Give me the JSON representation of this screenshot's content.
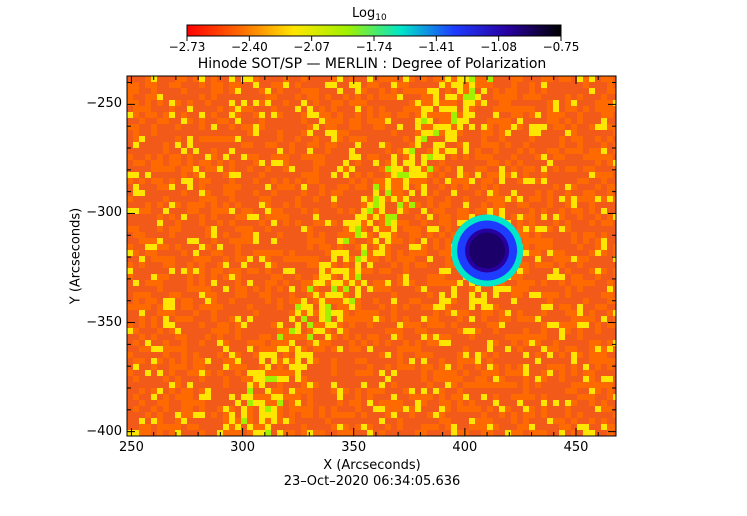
{
  "chart_data": {
    "type": "heatmap",
    "title": "Hinode SOT/SP — MERLIN : Degree of Polarization",
    "xlabel": "X (Arcseconds)",
    "ylabel": "Y (Arcseconds)",
    "timestamp": "23–Oct–2020 06:34:05.636",
    "xlim": [
      248,
      468
    ],
    "ylim": [
      -402,
      -237
    ],
    "xticks": [
      {
        "value": 250,
        "label": "250"
      },
      {
        "value": 300,
        "label": "300"
      },
      {
        "value": 350,
        "label": "350"
      },
      {
        "value": 400,
        "label": "400"
      },
      {
        "value": 450,
        "label": "450"
      }
    ],
    "yticks": [
      {
        "value": -250,
        "label": "−250"
      },
      {
        "value": -300,
        "label": "−300"
      },
      {
        "value": -350,
        "label": "−350"
      },
      {
        "value": -400,
        "label": "−400"
      }
    ],
    "colorbar": {
      "title": "Log",
      "title_subscript": "10",
      "colormap": "rainbow",
      "range": [
        -2.73,
        -0.75
      ],
      "tick_values": [
        -2.73,
        -2.4,
        -2.07,
        -1.74,
        -1.41,
        -1.08,
        -0.75
      ],
      "tick_labels": [
        "−2.73",
        "−2.40",
        "−2.07",
        "−1.74",
        "−1.41",
        "−1.08",
        "−0.75"
      ],
      "stops": [
        "#ff0000",
        "#ff6a00",
        "#ffe600",
        "#a0f000",
        "#00e6c8",
        "#1e3cff",
        "#2800a0",
        "#000000"
      ]
    },
    "features": [
      {
        "kind": "sunspot",
        "x": 410,
        "y": -317,
        "level": -0.8
      }
    ],
    "grid": false
  }
}
